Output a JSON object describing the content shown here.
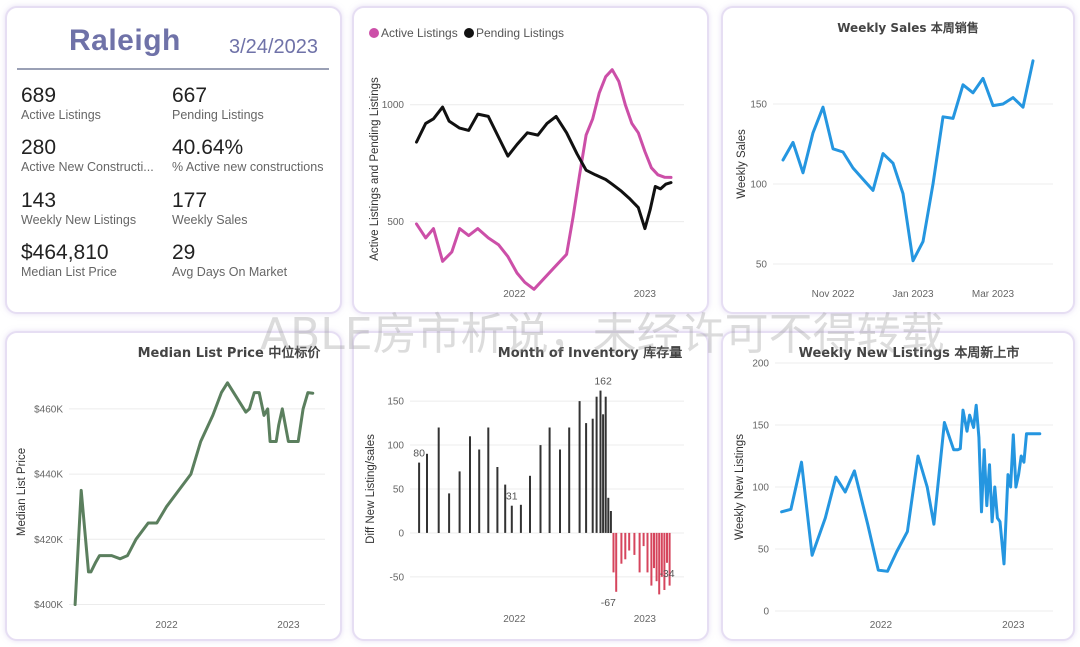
{
  "summary": {
    "city": "Raleigh",
    "date": "3/24/2023",
    "kpis": [
      {
        "value": "689",
        "label": "Active Listings"
      },
      {
        "value": "667",
        "label": "Pending Listings"
      },
      {
        "value": "280",
        "label": "Active New Constructi..."
      },
      {
        "value": "40.64%",
        "label": "% Active new constructions"
      },
      {
        "value": "143",
        "label": "Weekly New Listings"
      },
      {
        "value": "177",
        "label": "Weekly Sales"
      },
      {
        "value": "$464,810",
        "label": "Median List Price"
      },
      {
        "value": "29",
        "label": "Avg Days On Market"
      }
    ]
  },
  "watermark": "ABLE房市析说，未经许可不得转载",
  "colors": {
    "active": "#cc4fa8",
    "pending": "#111111",
    "sales": "#2596e0",
    "price": "#5b7f5e",
    "bar_pos": "#333333",
    "bar_neg": "#d6455d"
  },
  "chart_data": [
    {
      "type": "line",
      "title": "",
      "ylabel": "Active Listings and Pending Listings",
      "xlabel": "",
      "ylim": [
        250,
        1200
      ],
      "yticks": [
        500,
        1000
      ],
      "xlim": [
        2021.2,
        2023.3
      ],
      "xticks": [
        {
          "at": 2022.0,
          "label": "2022"
        },
        {
          "at": 2023.0,
          "label": "2023"
        }
      ],
      "legend": [
        "Active Listings",
        "Pending Listings"
      ],
      "series": [
        {
          "name": "Active Listings",
          "color": "#cc4fa8",
          "x": [
            2021.25,
            2021.32,
            2021.38,
            2021.45,
            2021.52,
            2021.58,
            2021.65,
            2021.72,
            2021.8,
            2021.88,
            2021.95,
            2022.02,
            2022.08,
            2022.15,
            2022.2,
            2022.3,
            2022.4,
            2022.45,
            2022.5,
            2022.55,
            2022.6,
            2022.65,
            2022.7,
            2022.75,
            2022.8,
            2022.85,
            2022.9,
            2022.95,
            2023.0,
            2023.05,
            2023.1,
            2023.15,
            2023.2
          ],
          "y": [
            490,
            430,
            470,
            330,
            370,
            470,
            440,
            470,
            430,
            400,
            350,
            280,
            240,
            210,
            240,
            300,
            360,
            520,
            700,
            870,
            940,
            1050,
            1120,
            1150,
            1100,
            1000,
            920,
            880,
            800,
            730,
            700,
            690,
            689
          ]
        },
        {
          "name": "Pending Listings",
          "color": "#111111",
          "x": [
            2021.25,
            2021.32,
            2021.38,
            2021.45,
            2021.5,
            2021.58,
            2021.65,
            2021.72,
            2021.8,
            2021.88,
            2021.95,
            2022.02,
            2022.1,
            2022.18,
            2022.25,
            2022.32,
            2022.4,
            2022.48,
            2022.55,
            2022.62,
            2022.7,
            2022.75,
            2022.82,
            2022.88,
            2022.95,
            2023.0,
            2023.04,
            2023.08,
            2023.12,
            2023.16,
            2023.2
          ],
          "y": [
            840,
            920,
            940,
            990,
            930,
            900,
            890,
            960,
            950,
            860,
            780,
            830,
            880,
            870,
            920,
            950,
            880,
            790,
            720,
            700,
            680,
            660,
            630,
            600,
            560,
            470,
            550,
            650,
            640,
            660,
            667
          ]
        }
      ]
    },
    {
      "type": "line",
      "title": "Weekly Sales 本周销售",
      "ylabel": "Weekly Sales",
      "ylim": [
        40,
        185
      ],
      "yticks": [
        50,
        100,
        150
      ],
      "xlim": [
        2022.72,
        2023.28
      ],
      "xticks": [
        {
          "at": 2022.84,
          "label": "Nov 2022"
        },
        {
          "at": 2023.0,
          "label": "Jan 2023"
        },
        {
          "at": 2023.16,
          "label": "Mar 2023"
        }
      ],
      "series": [
        {
          "name": "Weekly Sales",
          "color": "#2596e0",
          "x": [
            2022.74,
            2022.76,
            2022.78,
            2022.8,
            2022.82,
            2022.84,
            2022.86,
            2022.88,
            2022.9,
            2022.92,
            2022.94,
            2022.96,
            2022.98,
            2023.0,
            2023.02,
            2023.04,
            2023.06,
            2023.08,
            2023.1,
            2023.12,
            2023.14,
            2023.16,
            2023.18,
            2023.2,
            2023.22,
            2023.24
          ],
          "y": [
            115,
            126,
            107,
            132,
            148,
            122,
            120,
            110,
            103,
            96,
            119,
            113,
            94,
            52,
            64,
            100,
            142,
            141,
            162,
            157,
            166,
            149,
            150,
            154,
            148,
            177
          ]
        }
      ]
    },
    {
      "type": "line",
      "title": "Median List Price 中位标价",
      "ylabel": "Median List Price",
      "ylim": [
        398000,
        471000
      ],
      "yticks": [
        {
          "v": 400000,
          "label": "$400K"
        },
        {
          "v": 420000,
          "label": "$420K"
        },
        {
          "v": 440000,
          "label": "$440K"
        },
        {
          "v": 460000,
          "label": "$460K"
        }
      ],
      "xlim": [
        2021.2,
        2023.3
      ],
      "xticks": [
        {
          "at": 2022.0,
          "label": "2022"
        },
        {
          "at": 2023.0,
          "label": "2023"
        }
      ],
      "series": [
        {
          "name": "Median List Price",
          "color": "#5b7f5e",
          "x": [
            2021.25,
            2021.3,
            2021.36,
            2021.38,
            2021.42,
            2021.45,
            2021.55,
            2021.62,
            2021.68,
            2021.75,
            2021.85,
            2021.92,
            2022.0,
            2022.1,
            2022.2,
            2022.28,
            2022.38,
            2022.45,
            2022.5,
            2022.55,
            2022.6,
            2022.65,
            2022.68,
            2022.72,
            2022.76,
            2022.8,
            2022.83,
            2022.85,
            2022.87,
            2022.9,
            2022.92,
            2022.95,
            2023.0,
            2023.04,
            2023.08,
            2023.12,
            2023.16,
            2023.2
          ],
          "y": [
            400000,
            435000,
            410000,
            410000,
            413000,
            415000,
            415000,
            414000,
            415000,
            420000,
            425000,
            425000,
            430000,
            435000,
            440000,
            450000,
            458000,
            465000,
            468000,
            465000,
            462000,
            459000,
            460000,
            465000,
            465000,
            458000,
            460000,
            450000,
            450000,
            450000,
            455000,
            460000,
            450000,
            450000,
            450000,
            460000,
            465000,
            464810
          ]
        }
      ]
    },
    {
      "type": "bar",
      "title": "Month of Inventory 库存量",
      "ylabel": "Diff New Listing/sales",
      "ylim": [
        -82,
        182
      ],
      "yticks": [
        -50,
        0,
        50,
        100,
        150
      ],
      "xlim": [
        2021.2,
        2023.3
      ],
      "xticks": [
        {
          "at": 2022.0,
          "label": "2022"
        },
        {
          "at": 2023.0,
          "label": "2023"
        }
      ],
      "data_labels": [
        {
          "at": 2021.27,
          "value": 80
        },
        {
          "at": 2021.98,
          "value": 31
        },
        {
          "at": 2022.68,
          "value": 162
        },
        {
          "at": 2022.72,
          "value": -67
        },
        {
          "at": 2023.17,
          "value": -34
        }
      ],
      "x": [
        2021.27,
        2021.33,
        2021.42,
        2021.5,
        2021.58,
        2021.66,
        2021.73,
        2021.8,
        2021.87,
        2021.93,
        2021.98,
        2022.05,
        2022.12,
        2022.2,
        2022.27,
        2022.35,
        2022.42,
        2022.5,
        2022.55,
        2022.6,
        2022.63,
        2022.66,
        2022.68,
        2022.7,
        2022.72,
        2022.74,
        2022.76,
        2022.78,
        2022.82,
        2022.85,
        2022.88,
        2022.92,
        2022.96,
        2022.99,
        2023.02,
        2023.05,
        2023.07,
        2023.09,
        2023.11,
        2023.13,
        2023.15,
        2023.17,
        2023.19
      ],
      "values": [
        80,
        90,
        120,
        45,
        70,
        110,
        95,
        120,
        75,
        55,
        31,
        32,
        65,
        100,
        120,
        95,
        120,
        150,
        125,
        130,
        155,
        162,
        135,
        155,
        40,
        25,
        -45,
        -67,
        -35,
        -30,
        -20,
        -25,
        -45,
        -15,
        -45,
        -60,
        -40,
        -55,
        -70,
        -50,
        -65,
        -34,
        -60
      ]
    },
    {
      "type": "line",
      "title": "Weekly New Listings 本周新上市",
      "ylabel": "Weekly New Listings",
      "ylim": [
        0,
        200
      ],
      "yticks": [
        0,
        50,
        100,
        150,
        200
      ],
      "xlim": [
        2021.2,
        2023.3
      ],
      "xticks": [
        {
          "at": 2022.0,
          "label": "2022"
        },
        {
          "at": 2023.0,
          "label": "2023"
        }
      ],
      "series": [
        {
          "name": "Weekly New Listings",
          "color": "#2596e0",
          "x": [
            2021.25,
            2021.32,
            2021.4,
            2021.48,
            2021.58,
            2021.66,
            2021.73,
            2021.8,
            2021.9,
            2021.98,
            2022.05,
            2022.12,
            2022.2,
            2022.28,
            2022.35,
            2022.4,
            2022.48,
            2022.55,
            2022.58,
            2022.6,
            2022.62,
            2022.65,
            2022.67,
            2022.7,
            2022.72,
            2022.74,
            2022.76,
            2022.78,
            2022.8,
            2022.82,
            2022.84,
            2022.86,
            2022.88,
            2022.9,
            2022.93,
            2022.96,
            2022.98,
            2023.0,
            2023.02,
            2023.04,
            2023.06,
            2023.08,
            2023.1,
            2023.12,
            2023.15,
            2023.18,
            2023.2
          ],
          "y": [
            80,
            82,
            120,
            45,
            75,
            108,
            96,
            113,
            70,
            33,
            32,
            48,
            64,
            125,
            100,
            70,
            152,
            130,
            130,
            131,
            162,
            145,
            158,
            148,
            166,
            140,
            80,
            130,
            85,
            118,
            72,
            100,
            75,
            72,
            38,
            110,
            100,
            142,
            100,
            110,
            125,
            120,
            143,
            143,
            143,
            143,
            143
          ]
        }
      ]
    }
  ]
}
